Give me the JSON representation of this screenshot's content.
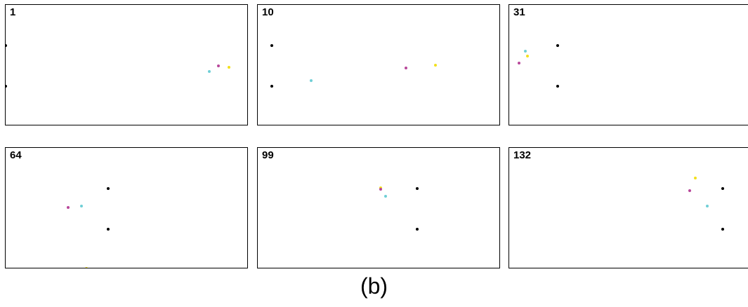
{
  "colors": {
    "black": "#000000",
    "magenta": "#b8479a",
    "cyan": "#6fcfd6",
    "yellow": "#f2e01c"
  },
  "frames": [
    {
      "label": "1"
    },
    {
      "label": "10"
    },
    {
      "label": "31"
    },
    {
      "label": "64"
    },
    {
      "label": "99"
    },
    {
      "label": "132"
    }
  ],
  "caption": "(b)"
}
